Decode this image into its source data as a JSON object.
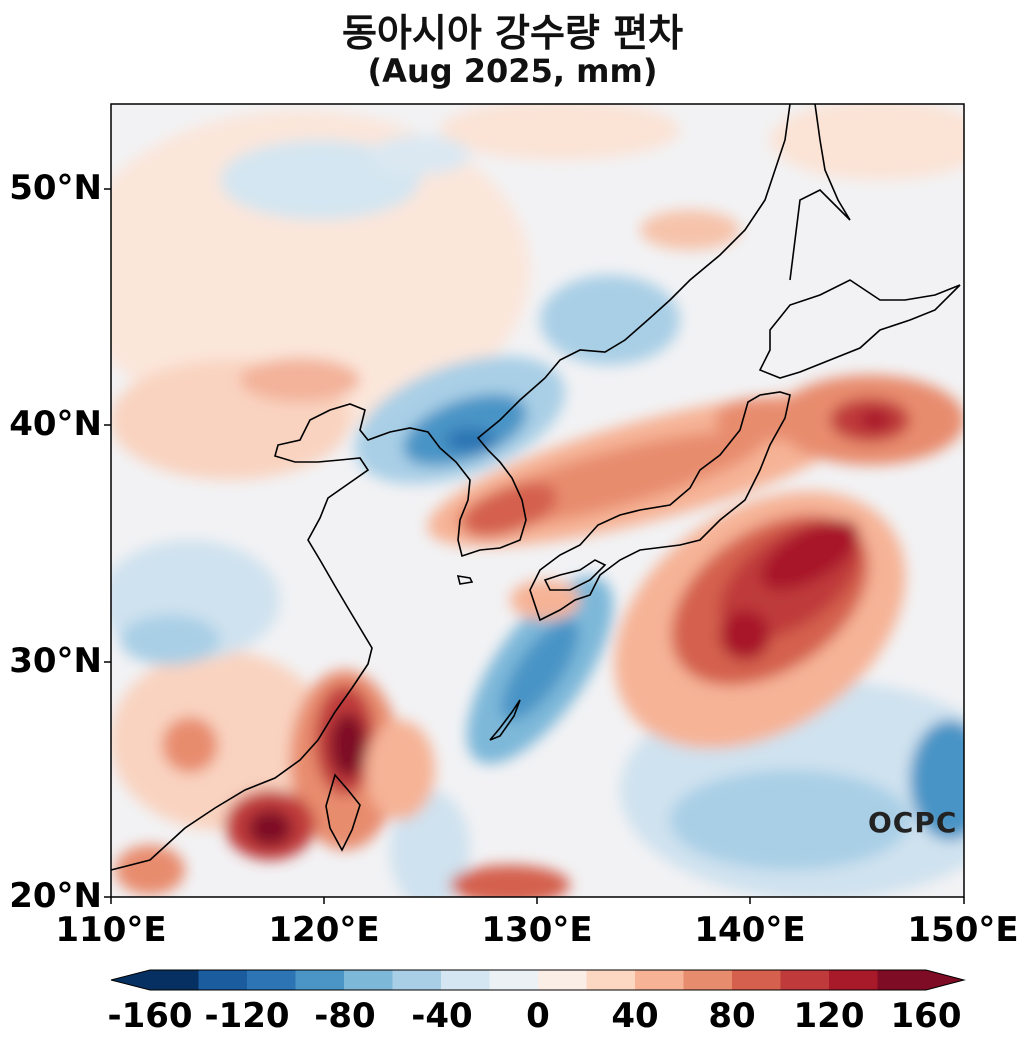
{
  "title": "동아시아 강수량 편차",
  "subtitle": "(Aug 2025, mm)",
  "logo": "OCPC",
  "map": {
    "lon_range": [
      110,
      150
    ],
    "lat_range": [
      20,
      53.5
    ],
    "lat_ticks": [
      {
        "value": 50,
        "label": "50°N"
      },
      {
        "value": 40,
        "label": "40°N"
      },
      {
        "value": 30,
        "label": "30°N"
      },
      {
        "value": 20,
        "label": "20°N"
      }
    ],
    "lon_ticks": [
      {
        "value": 110,
        "label": "110°E"
      },
      {
        "value": 120,
        "label": "120°E"
      },
      {
        "value": 130,
        "label": "130°E"
      },
      {
        "value": 140,
        "label": "140°E"
      },
      {
        "value": 150,
        "label": "150°E"
      }
    ],
    "colorbar": {
      "levels": [
        -160,
        -140,
        -120,
        -100,
        -80,
        -60,
        -40,
        -20,
        0,
        20,
        40,
        60,
        80,
        100,
        120,
        140,
        160
      ],
      "tick_labels": [
        "-160",
        "-120",
        "-80",
        "-40",
        "0",
        "40",
        "80",
        "120",
        "160"
      ],
      "colors": [
        "#053061",
        "#1a5c9e",
        "#2c74b3",
        "#4a94c6",
        "#7db8d9",
        "#a9cfe6",
        "#d4e6f1",
        "#ecf1f6",
        "#fbeee6",
        "#fcd7c2",
        "#f6b396",
        "#e88c6e",
        "#d4604d",
        "#bf3a3b",
        "#a8192a",
        "#7e0c25"
      ]
    }
  }
}
